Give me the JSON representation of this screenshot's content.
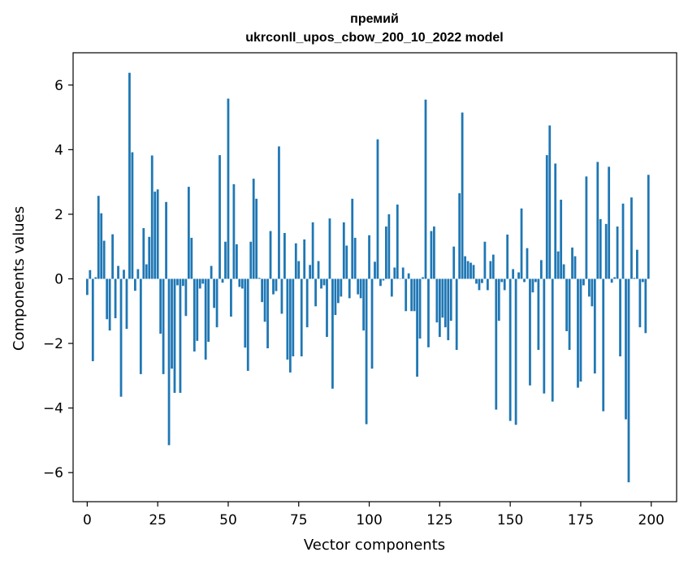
{
  "chart_data": {
    "type": "bar",
    "title": "премий",
    "subtitle": "ukrconll_upos_cbow_200_10_2022 model",
    "xlabel": "Vector components",
    "ylabel": "Components values",
    "xlim": [
      -5,
      209
    ],
    "ylim": [
      -6.9,
      7.0
    ],
    "xticks": [
      0,
      25,
      50,
      75,
      100,
      125,
      150,
      175,
      200
    ],
    "yticks": [
      -6,
      -4,
      -2,
      0,
      2,
      4,
      6
    ],
    "xtick_labels": [
      "0",
      "25",
      "50",
      "75",
      "100",
      "125",
      "150",
      "175",
      "200"
    ],
    "ytick_labels": [
      "−6",
      "−4",
      "−2",
      "0",
      "2",
      "4",
      "6"
    ],
    "grid": false,
    "bar_color": "#1f77b4",
    "values": [
      -0.5,
      0.27,
      -2.55,
      0.05,
      2.57,
      2.03,
      1.18,
      -1.25,
      -1.6,
      1.38,
      -1.22,
      0.4,
      -3.65,
      0.28,
      -1.55,
      6.38,
      3.92,
      -0.37,
      0.3,
      -2.95,
      1.57,
      0.45,
      1.3,
      3.82,
      2.7,
      2.77,
      -1.7,
      -2.95,
      2.38,
      -5.15,
      -2.78,
      -3.53,
      -0.2,
      -3.53,
      -0.22,
      -1.15,
      2.85,
      1.27,
      -2.25,
      -1.92,
      -0.3,
      -0.15,
      -2.5,
      -1.95,
      0.4,
      -0.9,
      -1.5,
      3.83,
      -0.12,
      1.15,
      5.58,
      -1.17,
      2.93,
      1.07,
      -0.25,
      -0.3,
      -2.13,
      -2.85,
      1.15,
      3.1,
      2.48,
      0.03,
      -0.72,
      -1.33,
      -2.15,
      1.48,
      -0.48,
      -0.38,
      4.1,
      -1.08,
      1.42,
      -2.5,
      -2.9,
      -2.4,
      1.1,
      0.55,
      -2.4,
      1.22,
      -1.5,
      0.43,
      1.75,
      -0.85,
      0.55,
      -0.3,
      -0.2,
      -1.8,
      1.87,
      -3.4,
      -1.12,
      -0.75,
      -0.55,
      1.75,
      1.03,
      -0.6,
      2.48,
      1.27,
      -0.48,
      -0.6,
      -1.6,
      -4.5,
      1.35,
      -2.78,
      0.53,
      4.32,
      -0.22,
      -0.05,
      1.62,
      2.0,
      -0.55,
      0.35,
      2.3,
      0.0,
      0.35,
      -1.0,
      0.17,
      -1.0,
      -1.0,
      -3.03,
      -1.85,
      0.05,
      5.55,
      -2.12,
      1.48,
      1.62,
      -1.35,
      -1.8,
      -1.2,
      -1.5,
      -1.9,
      -1.3,
      1.0,
      -2.2,
      2.65,
      5.15,
      0.7,
      0.55,
      0.5,
      0.43,
      -0.15,
      -0.35,
      -0.13,
      1.15,
      -0.35,
      0.55,
      0.75,
      -4.05,
      -1.3,
      -0.1,
      -0.35,
      1.37,
      -4.4,
      0.3,
      -4.52,
      0.2,
      2.18,
      -0.1,
      0.95,
      -3.3,
      -0.42,
      -0.1,
      -2.2,
      0.58,
      -3.55,
      3.83,
      4.75,
      -3.8,
      3.57,
      0.85,
      2.45,
      0.45,
      -1.62,
      -2.2,
      0.97,
      0.7,
      -3.37,
      -3.18,
      -0.2,
      3.17,
      -0.55,
      -0.85,
      -2.93,
      3.62,
      1.85,
      -4.1,
      1.7,
      3.47,
      -0.12,
      0.05,
      1.62,
      -2.4,
      2.33,
      -4.35,
      -6.3,
      2.52,
      0.03,
      0.9,
      -1.5,
      -0.1,
      -1.68,
      3.22
    ]
  }
}
